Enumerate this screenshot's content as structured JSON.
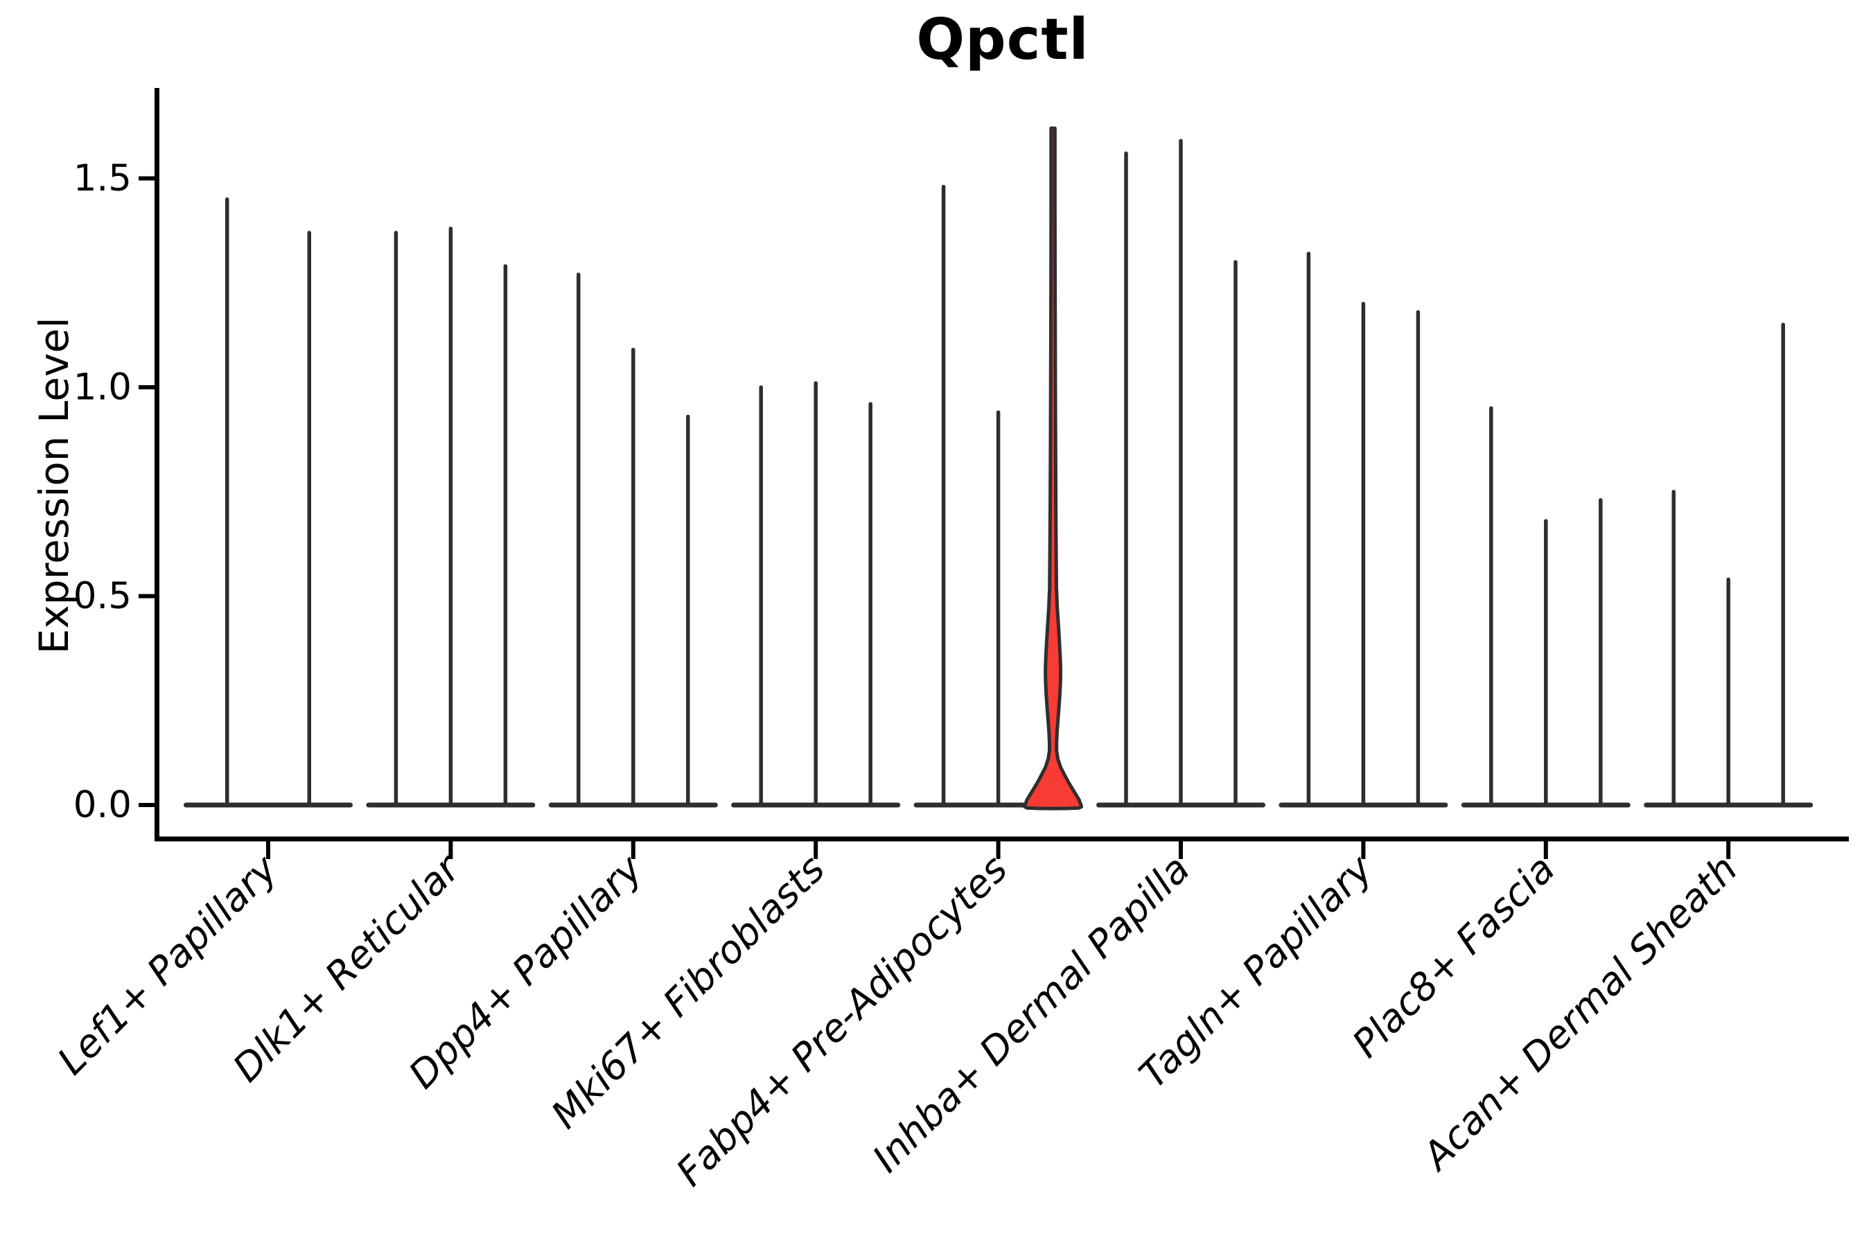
{
  "figure": {
    "title": "Qpctl",
    "y_axis_label": "Expression Level"
  },
  "chart_data": {
    "type": "violin",
    "title": "Qpctl",
    "xlabel": "",
    "ylabel": "Expression Level",
    "ylim": [
      -0.08,
      1.72
    ],
    "ytick_labels": [
      "0.0",
      "0.5",
      "1.0",
      "1.5"
    ],
    "ytick_values": [
      0.0,
      0.5,
      1.0,
      1.5
    ],
    "grid": false,
    "legend": "none",
    "x_tick_label_style": "italic, rotated 45deg",
    "outline_color": "#2e2e2e",
    "highlight_fill_color": "#f93b35",
    "baseline_density_at_zero": true,
    "categories": [
      "Lef1+ Papillary",
      "Dlk1+ Reticular",
      "Dpp4+ Papillary",
      "Mki67+ Fibroblasts",
      "Fabp4+ Pre-Adipocytes",
      "Inhba+ Dermal Papilla",
      "Tagln+ Papillary",
      "Plac8+ Fascia",
      "Acan+ Dermal Sheath"
    ],
    "groups": [
      {
        "category": "Lef1+ Papillary",
        "violins": [
          {
            "max": 1.45
          },
          {
            "max": 1.37
          }
        ]
      },
      {
        "category": "Dlk1+ Reticular",
        "violins": [
          {
            "max": 1.37
          },
          {
            "max": 1.38
          },
          {
            "max": 1.29
          }
        ]
      },
      {
        "category": "Dpp4+ Papillary",
        "violins": [
          {
            "max": 1.27
          },
          {
            "max": 1.09
          },
          {
            "max": 0.93
          }
        ]
      },
      {
        "category": "Mki67+ Fibroblasts",
        "violins": [
          {
            "max": 1.0
          },
          {
            "max": 1.01
          },
          {
            "max": 0.96
          }
        ]
      },
      {
        "category": "Fabp4+ Pre-Adipocytes",
        "violins": [
          {
            "max": 1.48
          },
          {
            "max": 0.94
          },
          {
            "max": 1.62,
            "highlighted": true,
            "profile": [
              [
                1.62,
                0.06
              ],
              [
                1.45,
                0.065
              ],
              [
                1.25,
                0.072
              ],
              [
                1.05,
                0.08
              ],
              [
                0.85,
                0.09
              ],
              [
                0.7,
                0.1
              ],
              [
                0.6,
                0.11
              ],
              [
                0.52,
                0.12
              ],
              [
                0.47,
                0.15
              ],
              [
                0.43,
                0.19
              ],
              [
                0.39,
                0.225
              ],
              [
                0.355,
                0.252
              ],
              [
                0.325,
                0.268
              ],
              [
                0.295,
                0.262
              ],
              [
                0.265,
                0.24
              ],
              [
                0.235,
                0.21
              ],
              [
                0.205,
                0.175
              ],
              [
                0.175,
                0.143
              ],
              [
                0.15,
                0.125
              ],
              [
                0.13,
                0.125
              ],
              [
                0.11,
                0.17
              ],
              [
                0.09,
                0.27
              ],
              [
                0.07,
                0.42
              ],
              [
                0.05,
                0.58
              ],
              [
                0.03,
                0.76
              ],
              [
                0.012,
                0.92
              ],
              [
                -0.004,
                1.0
              ],
              [
                -0.007,
                0.92
              ],
              [
                -0.008,
                0.55
              ],
              [
                -0.0085,
                0.0
              ]
            ]
          }
        ]
      },
      {
        "category": "Inhba+ Dermal Papilla",
        "violins": [
          {
            "max": 1.56
          },
          {
            "max": 1.59
          },
          {
            "max": 1.3
          }
        ]
      },
      {
        "category": "Tagln+ Papillary",
        "violins": [
          {
            "max": 1.32
          },
          {
            "max": 1.2
          },
          {
            "max": 1.18
          }
        ]
      },
      {
        "category": "Plac8+ Fascia",
        "violins": [
          {
            "max": 0.95
          },
          {
            "max": 0.68
          },
          {
            "max": 0.73
          }
        ]
      },
      {
        "category": "Acan+ Dermal Sheath",
        "violins": [
          {
            "max": 0.75
          },
          {
            "max": 0.54
          },
          {
            "max": 1.15
          }
        ]
      }
    ]
  }
}
